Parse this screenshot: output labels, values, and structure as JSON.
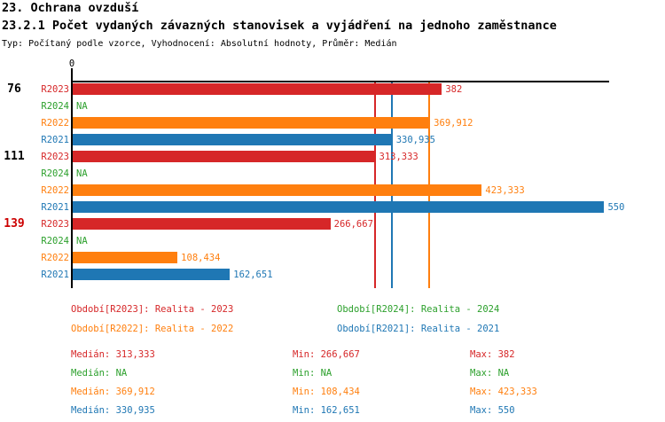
{
  "header": {
    "title": "23. Ochrana ovzduší",
    "subtitle": "23.2.1 Počet vydaných závazných stanovisek a vyjádření na jednoho zaměstnance",
    "meta": "Typ: Počítaný podle vzorce, Vyhodnocení: Absolutní hodnoty, Průměr: Medián"
  },
  "colors": {
    "r2023": "#d62728",
    "r2024": "#2ca02c",
    "r2022": "#ff7f0e",
    "r2021": "#1f77b4",
    "highlight_group": "#cc0000",
    "axis": "#000000"
  },
  "chart_data": {
    "type": "bar",
    "orientation": "horizontal",
    "title": "23.2.1 Počet vydaných závazných stanovisek a vyjádření na jednoho zaměstnance",
    "x_axis": {
      "tick_label": "0",
      "xlim": [
        0,
        556
      ],
      "grid": false
    },
    "series_order": [
      "R2023",
      "R2024",
      "R2022",
      "R2021"
    ],
    "groups": [
      {
        "label": "76",
        "highlight": false,
        "bars": [
          {
            "period": "R2023",
            "value": 382,
            "value_label": "382",
            "color": "#d62728"
          },
          {
            "period": "R2024",
            "value": null,
            "value_label": "NA",
            "color": "#2ca02c"
          },
          {
            "period": "R2022",
            "value": 369.912,
            "value_label": "369,912",
            "color": "#ff7f0e"
          },
          {
            "period": "R2021",
            "value": 330.935,
            "value_label": "330,935",
            "color": "#1f77b4"
          }
        ]
      },
      {
        "label": "111",
        "highlight": false,
        "bars": [
          {
            "period": "R2023",
            "value": 313.333,
            "value_label": "313,333",
            "color": "#d62728"
          },
          {
            "period": "R2024",
            "value": null,
            "value_label": "NA",
            "color": "#2ca02c"
          },
          {
            "period": "R2022",
            "value": 423.333,
            "value_label": "423,333",
            "color": "#ff7f0e"
          },
          {
            "period": "R2021",
            "value": 550,
            "value_label": "550",
            "color": "#1f77b4"
          }
        ]
      },
      {
        "label": "139",
        "highlight": true,
        "bars": [
          {
            "period": "R2023",
            "value": 266.667,
            "value_label": "266,667",
            "color": "#d62728"
          },
          {
            "period": "R2024",
            "value": null,
            "value_label": "NA",
            "color": "#2ca02c"
          },
          {
            "period": "R2022",
            "value": 108.434,
            "value_label": "108,434",
            "color": "#ff7f0e"
          },
          {
            "period": "R2021",
            "value": 162.651,
            "value_label": "162,651",
            "color": "#1f77b4"
          }
        ]
      }
    ],
    "median_lines": [
      {
        "series": "R2023",
        "value": 313.333,
        "color": "#d62728"
      },
      {
        "series": "R2022",
        "value": 369.912,
        "color": "#ff7f0e"
      },
      {
        "series": "R2021",
        "value": 330.935,
        "color": "#1f77b4"
      }
    ]
  },
  "legend": {
    "items": [
      {
        "label": "Období[R2023]: Realita - 2023",
        "color": "#d62728"
      },
      {
        "label": "Období[R2024]: Realita - 2024",
        "color": "#2ca02c"
      },
      {
        "label": "Období[R2022]: Realita - 2022",
        "color": "#ff7f0e"
      },
      {
        "label": "Období[R2021]: Realita - 2021",
        "color": "#1f77b4"
      }
    ]
  },
  "stats": {
    "rows": [
      {
        "median": "Medián: 313,333",
        "min": "Min: 266,667",
        "max": "Max: 382",
        "color": "#d62728"
      },
      {
        "median": "Medián: NA",
        "min": "Min: NA",
        "max": "Max: NA",
        "color": "#2ca02c"
      },
      {
        "median": "Medián: 369,912",
        "min": "Min: 108,434",
        "max": "Max: 423,333",
        "color": "#ff7f0e"
      },
      {
        "median": "Medián: 330,935",
        "min": "Min: 162,651",
        "max": "Max: 550",
        "color": "#1f77b4"
      }
    ]
  }
}
